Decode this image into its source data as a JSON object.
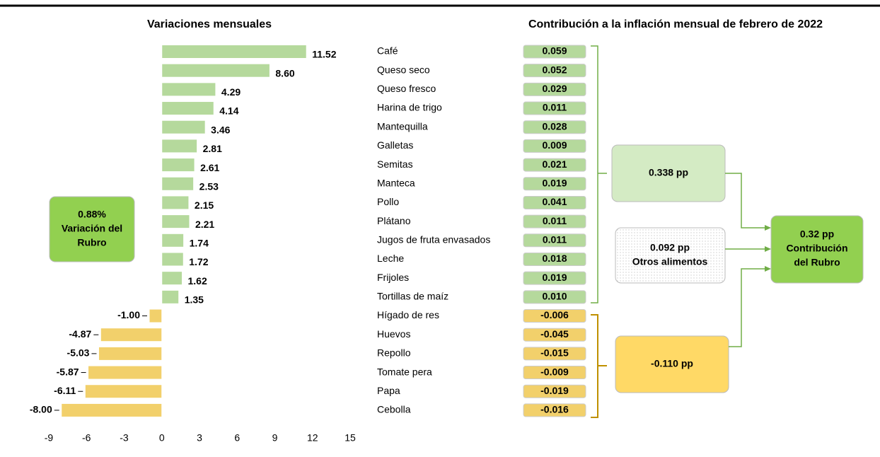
{
  "chart_data": {
    "type": "bar",
    "title": "Variaciones mensuales",
    "categories": [
      "Café",
      "Queso seco",
      "Queso fresco",
      "Harina de trigo",
      "Mantequilla",
      "Galletas",
      "Semitas",
      "Manteca",
      "Pollo",
      "Plátano",
      "Jugos de fruta envasados",
      "Leche",
      "Frijoles",
      "Tortillas de maíz",
      "Hígado de res",
      "Huevos",
      "Repollo",
      "Tomate pera",
      "Papa",
      "Cebolla"
    ],
    "values": [
      11.52,
      8.6,
      4.29,
      4.14,
      3.46,
      2.81,
      2.61,
      2.53,
      2.15,
      2.21,
      1.74,
      1.72,
      1.62,
      1.35,
      -1.0,
      -4.87,
      -5.03,
      -5.87,
      -6.11,
      -8.0
    ],
    "value_labels": [
      "11.52",
      "8.60",
      "4.29",
      "4.14",
      "3.46",
      "2.81",
      "2.61",
      "2.53",
      "2.15",
      "2.21",
      "1.74",
      "1.72",
      "1.62",
      "1.35",
      "-1.00",
      "-4.87",
      "-5.03",
      "-5.87",
      "-6.11",
      "-8.00"
    ],
    "positive_color": "#b5d99c",
    "negative_color": "#f2d06b",
    "xlim": [
      -9,
      15
    ],
    "xticks": [
      -9,
      -6,
      -3,
      0,
      3,
      6,
      9,
      12,
      15
    ],
    "contribution": {
      "title": "Contribución a la inflación mensual de febrero de 2022",
      "values": [
        0.059,
        0.052,
        0.029,
        0.011,
        0.028,
        0.009,
        0.021,
        0.019,
        0.041,
        0.011,
        0.011,
        0.018,
        0.019,
        0.01,
        -0.006,
        -0.045,
        -0.015,
        -0.009,
        -0.019,
        -0.016
      ],
      "value_labels": [
        "0.059",
        "0.052",
        "0.029",
        "0.011",
        "0.028",
        "0.009",
        "0.021",
        "0.019",
        "0.041",
        "0.011",
        "0.011",
        "0.018",
        "0.019",
        "0.010",
        "-0.006",
        "-0.045",
        "-0.015",
        "-0.009",
        "-0.019",
        "-0.016"
      ]
    },
    "rubro_box": [
      "0.88%",
      "Variación del",
      "Rubro"
    ],
    "positive_box": [
      "0.338 pp"
    ],
    "others_box": [
      "0.092 pp",
      "Otros alimentos"
    ],
    "negative_box": [
      "-0.110 pp"
    ],
    "total_box": [
      "0.32 pp",
      "Contribución",
      "del Rubro"
    ]
  }
}
